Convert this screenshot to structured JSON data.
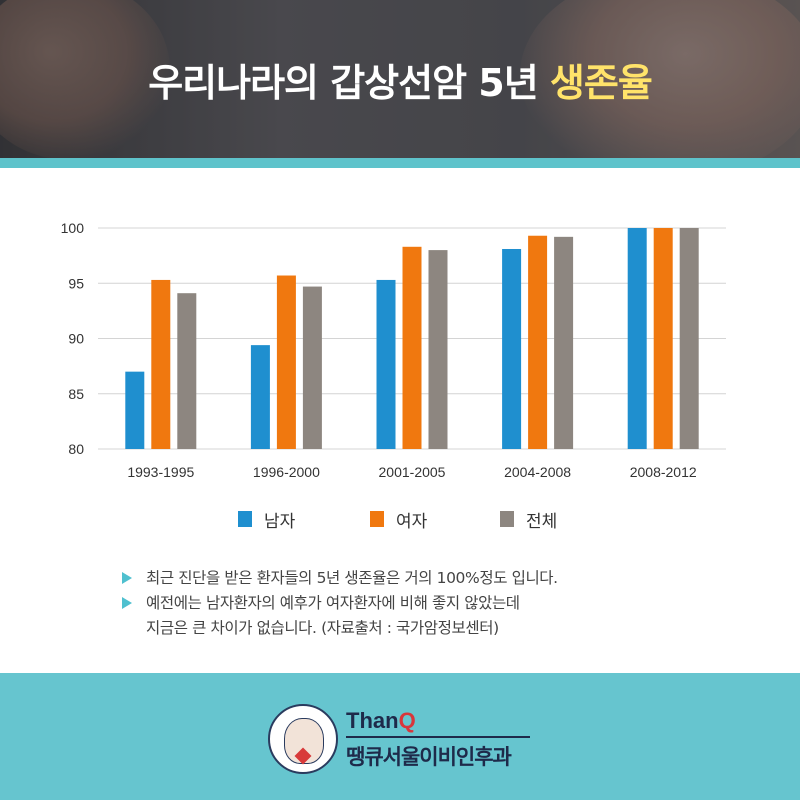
{
  "header": {
    "title_main": "우리나라의 갑상선암 5년 ",
    "title_highlight": "생존율"
  },
  "chart_data": {
    "type": "bar",
    "categories": [
      "1993-1995",
      "1996-2000",
      "2001-2005",
      "2004-2008",
      "2008-2012"
    ],
    "series": [
      {
        "name": "남자",
        "color": "#1f8fcf",
        "values": [
          87.0,
          89.4,
          95.3,
          98.1,
          100
        ]
      },
      {
        "name": "여자",
        "color": "#f0780f",
        "values": [
          95.3,
          95.7,
          98.3,
          99.3,
          100
        ]
      },
      {
        "name": "전체",
        "color": "#8d8680",
        "values": [
          94.1,
          94.7,
          98.0,
          99.2,
          100
        ]
      }
    ],
    "ylim": [
      80,
      100
    ],
    "yticks": [
      80,
      85,
      90,
      95,
      100
    ],
    "grid": true,
    "legend_position": "bottom"
  },
  "notes": [
    "최근 진단을 받은 환자들의 5년 생존율은 거의 100%정도 입니다.",
    "예전에는 남자환자의 예후가 여자환자에 비해 좋지 않았는데",
    "지금은 큰 차이가 없습니다. (자료출처 : 국가암정보센터)"
  ],
  "footer": {
    "brand_en": "Than",
    "brand_en_q": "Q",
    "brand_kr": "땡큐서울이비인후과"
  }
}
